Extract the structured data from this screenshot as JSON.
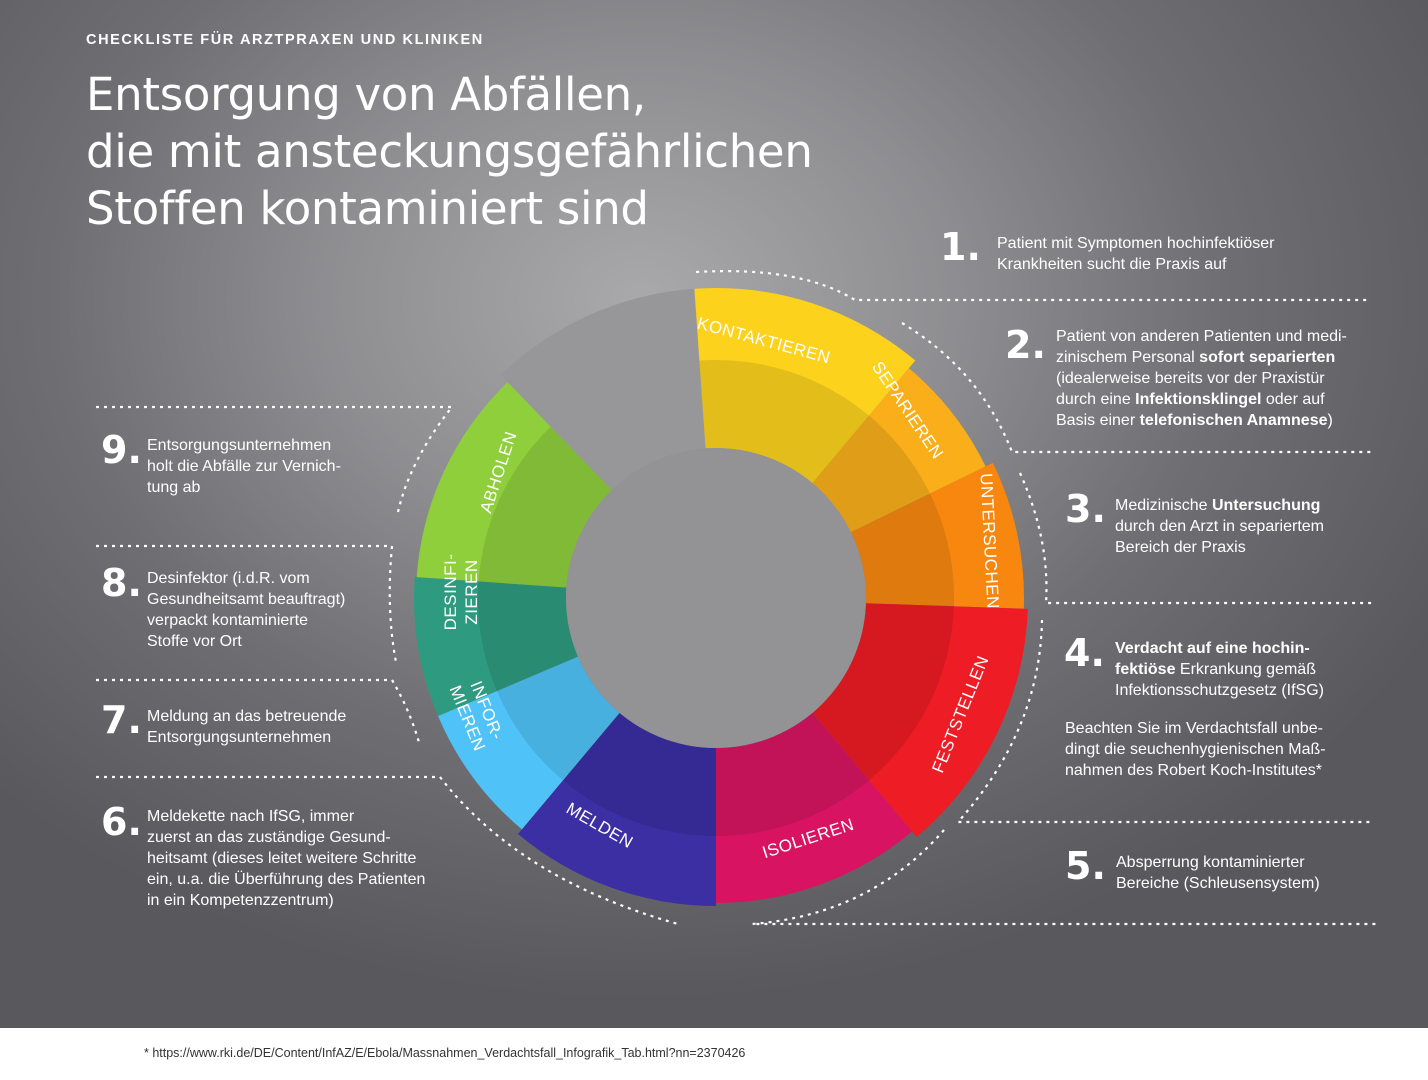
{
  "header": {
    "overline": "CHECKLISTE FÜR ARZTPRAXEN UND KLINIKEN",
    "title_lines": [
      "Entsorgung von Abfällen,",
      "die mit ansteckungsgefährlichen",
      "Stoffen kontaminiert sind"
    ]
  },
  "wheel": {
    "segments": [
      {
        "label": "KONTAKTIEREN",
        "color": "#fcd21c"
      },
      {
        "label": "SEPARIEREN",
        "color": "#f9ae1a"
      },
      {
        "label": "UNTERSUCHEN",
        "color": "#f7870f"
      },
      {
        "label": "FESTSTELLEN",
        "color": "#ee1c25"
      },
      {
        "label": "ISOLIEREN",
        "color": "#d81462"
      },
      {
        "label": "MELDEN",
        "color": "#3b2fa3"
      },
      {
        "label_lines": [
          "INFOR-",
          "MIEREN"
        ],
        "color": "#4fc3f7"
      },
      {
        "label_lines": [
          "DESINFI-",
          "ZIEREN"
        ],
        "color": "#2e9a7f"
      },
      {
        "label": "ABHOLEN",
        "color": "#8fcf3c"
      }
    ],
    "empty_color": "#979799",
    "center_color": "#939395"
  },
  "steps": {
    "s1": {
      "num": "1.",
      "lines": [
        "Patient mit Symptomen hochinfektiöser",
        "Krankheiten sucht die Praxis auf"
      ]
    },
    "s2": {
      "num": "2.",
      "l1": "Patient von anderen Patienten und medi-",
      "l2a": "zinischem Personal ",
      "l2b": "sofort separierten",
      "l3": "(idealerweise bereits vor der Praxistür",
      "l4a": "durch eine ",
      "l4b": "Infektionsklingel",
      "l4c": " oder auf",
      "l5a": "Basis einer ",
      "l5b": "telefonischen Anamnese",
      "l5c": ")"
    },
    "s3": {
      "num": "3.",
      "l1a": "Medizinische ",
      "l1b": "Untersuchung",
      "l2": "durch den Arzt in separiertem",
      "l3": "Bereich der Praxis"
    },
    "s4": {
      "num": "4.",
      "l1": "Verdacht auf eine hochin-",
      "l2a": "fektiöse",
      "l2b": " Erkrankung gemäß",
      "l3": "Infektionsschutzgesetz (IfSG)",
      "note": [
        "Beachten Sie im Verdachtsfall unbe-",
        "dingt die seuchenhygienischen Maß-",
        "nahmen des Robert Koch-Institutes*"
      ]
    },
    "s5": {
      "num": "5.",
      "lines": [
        "Absperrung kontaminierter",
        "Bereiche (Schleusensystem)"
      ]
    },
    "s6": {
      "num": "6.",
      "lines": [
        "Meldekette nach IfSG, immer",
        "zuerst an das zuständige Gesund-",
        "heitsamt (dieses leitet weitere Schritte",
        "ein, u.a. die Überführung des Patienten",
        "in ein Kompetenzzentrum)"
      ]
    },
    "s7": {
      "num": "7.",
      "lines": [
        "Meldung an das betreuende",
        "Entsorgungsunternehmen"
      ]
    },
    "s8": {
      "num": "8.",
      "lines": [
        "Desinfektor (i.d.R. vom",
        "Gesundheitsamt beauftragt)",
        "verpackt kontaminierte",
        "Stoffe vor Ort"
      ]
    },
    "s9": {
      "num": "9.",
      "lines": [
        "Entsorgungsunternehmen",
        "holt die Abfälle zur Vernich-",
        "tung ab"
      ]
    }
  },
  "footnote": "* https://www.rki.de/DE/Content/InfAZ/E/Ebola/Massnahmen_Verdachtsfall_Infografik_Tab.html?nn=2370426"
}
